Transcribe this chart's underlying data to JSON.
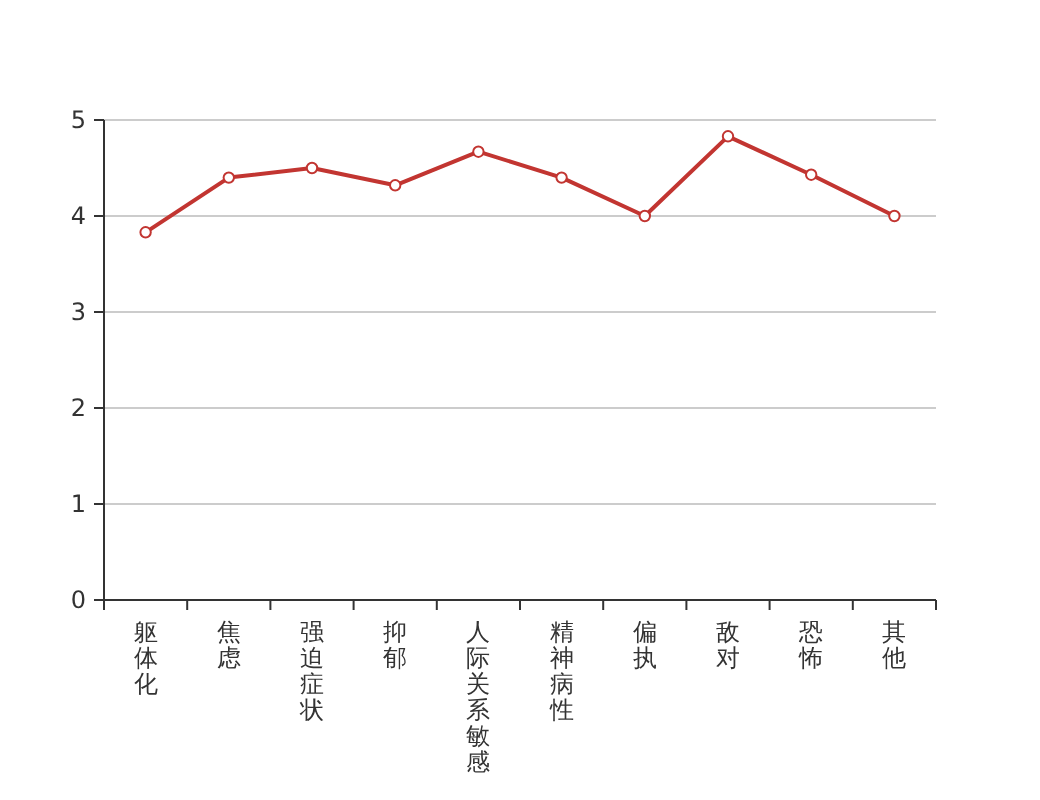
{
  "chart_data": {
    "type": "line",
    "categories": [
      "躯体化",
      "焦虑",
      "强迫症状",
      "抑郁",
      "人际关系敏感",
      "精神病性",
      "偏执",
      "敌对",
      "恐怖",
      "其他"
    ],
    "series": [
      {
        "color": "#c23531",
        "values": [
          3.83,
          4.4,
          4.5,
          4.32,
          4.67,
          4.4,
          4.0,
          4.83,
          4.43,
          4.0
        ]
      }
    ],
    "ylim": [
      0,
      5
    ],
    "yticks": [
      0,
      1,
      2,
      3,
      4,
      5
    ],
    "grid": "y",
    "marker": "circle",
    "line_style": "solid"
  }
}
